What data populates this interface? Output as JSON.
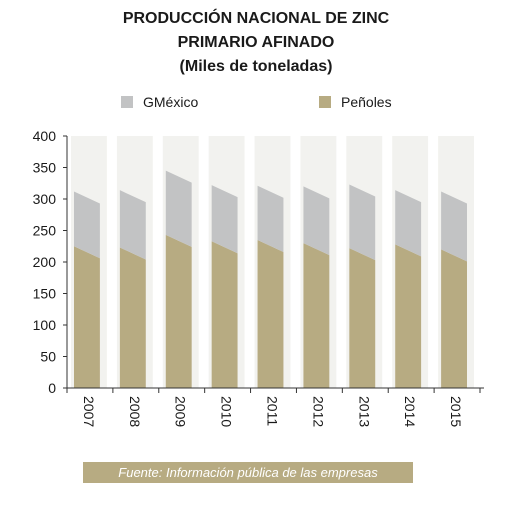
{
  "title_lines": [
    "PRODUCCIÓN NACIONAL DE ZINC",
    "PRIMARIO AFINADO",
    "(Miles de toneladas)"
  ],
  "legend": [
    {
      "name": "GMéxico",
      "color": "#c2c3c4"
    },
    {
      "name": "Peñoles",
      "color": "#b7ab82"
    }
  ],
  "footer": {
    "text": "Fuente: Información pública de las empresas",
    "color": "#b7ab82"
  },
  "chart_data": {
    "type": "bar",
    "stacked": true,
    "categories": [
      "2007",
      "2008",
      "2009",
      "2010",
      "2011",
      "2012",
      "2013",
      "2014",
      "2015"
    ],
    "series": [
      {
        "name": "Peñoles",
        "color": "#b7ab82",
        "values": [
          225,
          223,
          243,
          233,
          235,
          230,
          222,
          228,
          220
        ]
      },
      {
        "name": "GMéxico",
        "color": "#c2c3c4",
        "values": [
          87,
          91,
          102,
          89,
          86,
          90,
          101,
          86,
          92
        ]
      }
    ],
    "ylim": [
      0,
      400
    ],
    "yticks": [
      0,
      50,
      100,
      150,
      200,
      250,
      300,
      350,
      400
    ],
    "xlabel": "",
    "ylabel": "",
    "grid": false,
    "legend_position": "top"
  }
}
